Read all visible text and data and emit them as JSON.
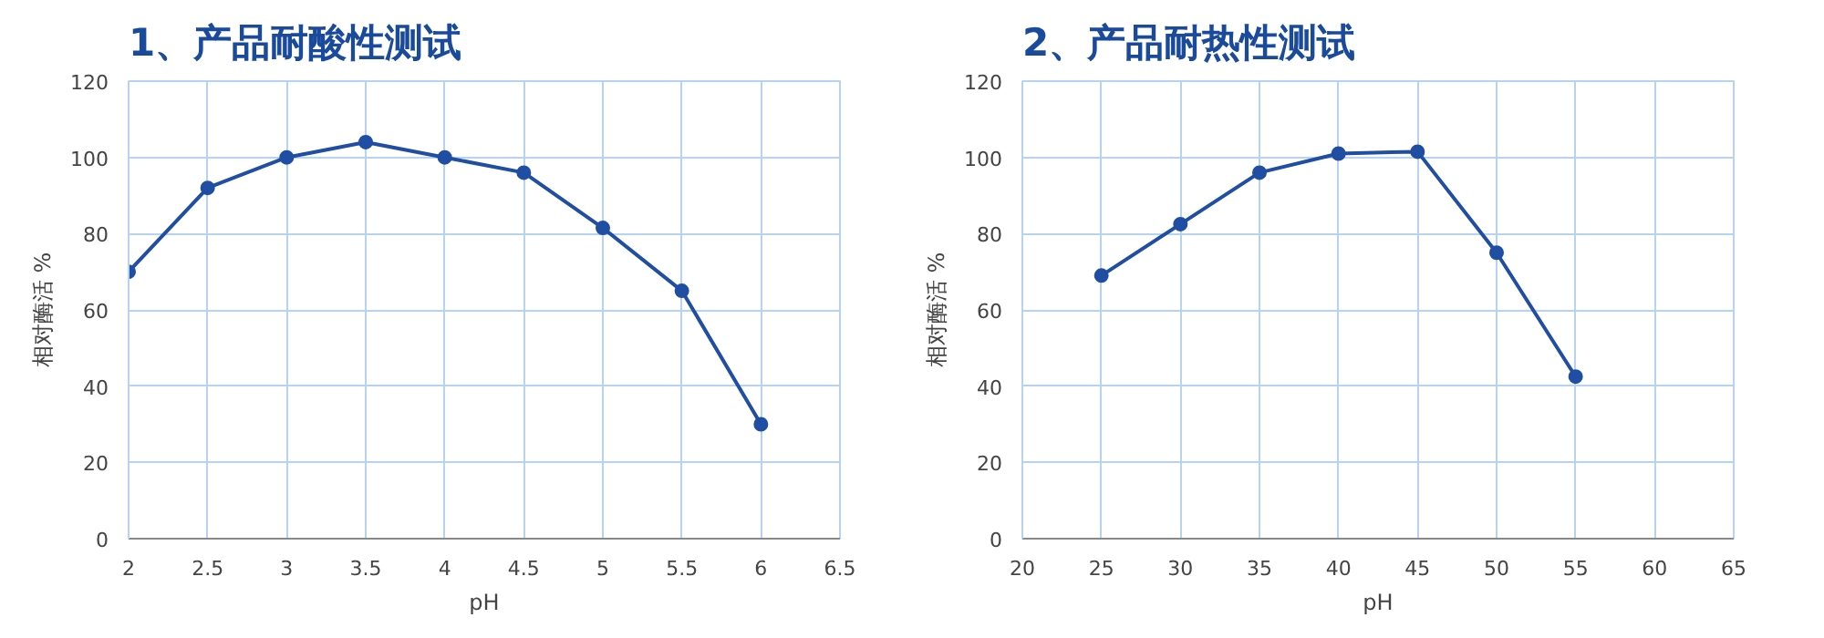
{
  "chart_data": [
    {
      "type": "line",
      "title": "1、产品耐酸性测试",
      "xlabel": "pH",
      "ylabel": "相对酶活 %",
      "x": [
        2,
        2.5,
        3,
        3.5,
        4,
        4.5,
        5,
        5.5,
        6
      ],
      "series": [
        {
          "color": "#1f4ea3",
          "values": [
            70,
            92,
            100,
            104,
            100,
            96,
            81.5,
            65,
            30
          ]
        }
      ],
      "xlim": [
        2,
        6.5
      ],
      "xticks": [
        2,
        2.5,
        3,
        3.5,
        4,
        4.5,
        5,
        5.5,
        6,
        6.5
      ],
      "ylim": [
        0,
        120
      ],
      "yticks": [
        0,
        20,
        40,
        60,
        80,
        100,
        120
      ],
      "grid": true,
      "marker": "circle",
      "line_style": "solid"
    },
    {
      "type": "line",
      "title": "2、产品耐热性测试",
      "xlabel": "pH",
      "ylabel": "相对酶活 %",
      "x": [
        25,
        30,
        35,
        40,
        45,
        50,
        55
      ],
      "series": [
        {
          "color": "#1f4ea3",
          "values": [
            69,
            82.5,
            96,
            101,
            101.5,
            75,
            42.5
          ]
        }
      ],
      "xlim": [
        20,
        65
      ],
      "xticks": [
        20,
        25,
        30,
        35,
        40,
        45,
        50,
        55,
        60,
        65
      ],
      "ylim": [
        0,
        120
      ],
      "yticks": [
        0,
        20,
        40,
        60,
        80,
        100,
        120
      ],
      "grid": true,
      "marker": "circle",
      "line_style": "solid"
    }
  ]
}
